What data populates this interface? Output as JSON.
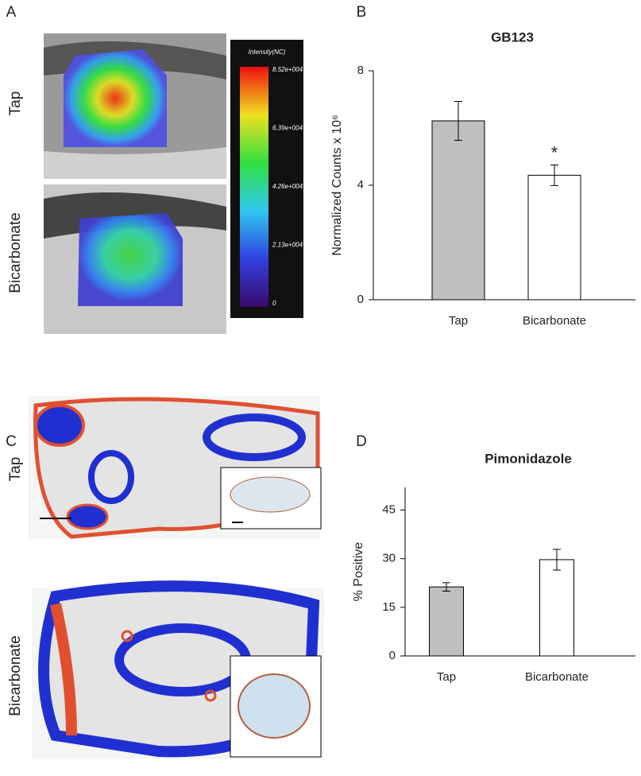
{
  "panels": {
    "A": {
      "letter": "A",
      "rows": [
        "Tap",
        "Bicarbonate"
      ],
      "colorbar": {
        "title": "Intensity(NC)",
        "labels": [
          "8.52e+004",
          "6.39e+004",
          "4.26e+004",
          "2.13e+004",
          "0"
        ]
      }
    },
    "B": {
      "letter": "B"
    },
    "C": {
      "letter": "C",
      "rows": [
        "Tap",
        "Bicarbonate"
      ]
    },
    "D": {
      "letter": "D"
    }
  },
  "chart_data": [
    {
      "type": "bar",
      "title": "GB123",
      "ylabel": "Normalized Counts x 10⁶",
      "categories": [
        "Tap",
        "Bicarbonate"
      ],
      "values": [
        6.25,
        4.35
      ],
      "errors": [
        0.68,
        0.36
      ],
      "colors": [
        "#bfbfbf",
        "#ffffff"
      ],
      "significance": "*",
      "ylim": [
        0,
        8
      ],
      "yticks": [
        0,
        4,
        8
      ]
    },
    {
      "type": "bar",
      "title": "Pimonidazole",
      "ylabel": "% Positive",
      "categories": [
        "Tap",
        "Bicarbonate"
      ],
      "values": [
        21.3,
        29.7
      ],
      "errors": [
        1.3,
        3.2
      ],
      "colors": [
        "#bfbfbf",
        "#ffffff"
      ],
      "ylim": [
        0,
        52
      ],
      "yticks": [
        0,
        15,
        30,
        45
      ]
    }
  ]
}
